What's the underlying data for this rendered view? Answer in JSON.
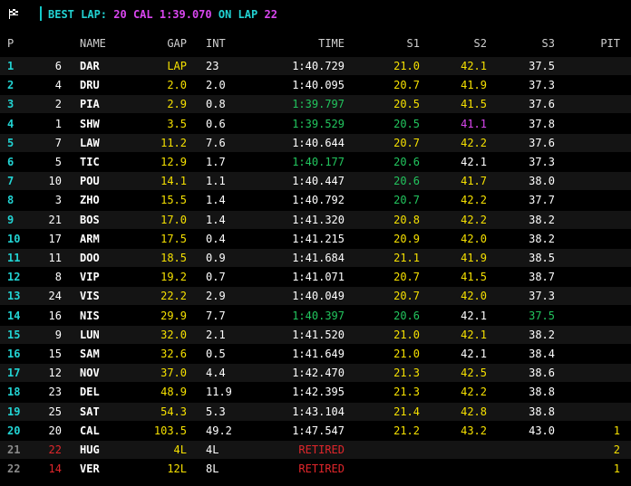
{
  "header": {
    "best_lap_label": "BEST LAP:",
    "best_lap_info": "20 CAL 1:39.070",
    "on_lap_label": "ON LAP",
    "on_lap_value": "22"
  },
  "columns": [
    "P",
    "NAME",
    "GAP",
    "INT",
    "TIME",
    "S1",
    "S2",
    "S3",
    "PIT"
  ],
  "colors": {
    "position": "#22d3d3",
    "gap": "#f5e000",
    "personal_best": "#22c55e",
    "fastest": "#d946ef",
    "retired": "#e0262b",
    "normal": "#ffffff"
  },
  "rows": [
    {
      "p": "1",
      "num": "6",
      "name": "DAR",
      "gap": "LAP",
      "int": "23",
      "time": "1:40.729",
      "s1": "21.0",
      "s2": "42.1",
      "s3": "37.5",
      "pit": ""
    },
    {
      "p": "2",
      "num": "4",
      "name": "DRU",
      "gap": "2.0",
      "int": "2.0",
      "time": "1:40.095",
      "s1": "20.7",
      "s2": "41.9",
      "s3": "37.3",
      "pit": ""
    },
    {
      "p": "3",
      "num": "2",
      "name": "PIA",
      "gap": "2.9",
      "int": "0.8",
      "time": "1:39.797",
      "s1": "20.5",
      "s2": "41.5",
      "s3": "37.6",
      "pit": ""
    },
    {
      "p": "4",
      "num": "1",
      "name": "SHW",
      "gap": "3.5",
      "int": "0.6",
      "time": "1:39.529",
      "s1": "20.5",
      "s2": "41.1",
      "s3": "37.8",
      "pit": ""
    },
    {
      "p": "5",
      "num": "7",
      "name": "LAW",
      "gap": "11.2",
      "int": "7.6",
      "time": "1:40.644",
      "s1": "20.7",
      "s2": "42.2",
      "s3": "37.6",
      "pit": ""
    },
    {
      "p": "6",
      "num": "5",
      "name": "TIC",
      "gap": "12.9",
      "int": "1.7",
      "time": "1:40.177",
      "s1": "20.6",
      "s2": "42.1",
      "s3": "37.3",
      "pit": ""
    },
    {
      "p": "7",
      "num": "10",
      "name": "POU",
      "gap": "14.1",
      "int": "1.1",
      "time": "1:40.447",
      "s1": "20.6",
      "s2": "41.7",
      "s3": "38.0",
      "pit": ""
    },
    {
      "p": "8",
      "num": "3",
      "name": "ZHO",
      "gap": "15.5",
      "int": "1.4",
      "time": "1:40.792",
      "s1": "20.7",
      "s2": "42.2",
      "s3": "37.7",
      "pit": ""
    },
    {
      "p": "9",
      "num": "21",
      "name": "BOS",
      "gap": "17.0",
      "int": "1.4",
      "time": "1:41.320",
      "s1": "20.8",
      "s2": "42.2",
      "s3": "38.2",
      "pit": ""
    },
    {
      "p": "10",
      "num": "17",
      "name": "ARM",
      "gap": "17.5",
      "int": "0.4",
      "time": "1:41.215",
      "s1": "20.9",
      "s2": "42.0",
      "s3": "38.2",
      "pit": ""
    },
    {
      "p": "11",
      "num": "11",
      "name": "DOO",
      "gap": "18.5",
      "int": "0.9",
      "time": "1:41.684",
      "s1": "21.1",
      "s2": "41.9",
      "s3": "38.5",
      "pit": ""
    },
    {
      "p": "12",
      "num": "8",
      "name": "VIP",
      "gap": "19.2",
      "int": "0.7",
      "time": "1:41.071",
      "s1": "20.7",
      "s2": "41.5",
      "s3": "38.7",
      "pit": ""
    },
    {
      "p": "13",
      "num": "24",
      "name": "VIS",
      "gap": "22.2",
      "int": "2.9",
      "time": "1:40.049",
      "s1": "20.7",
      "s2": "42.0",
      "s3": "37.3",
      "pit": ""
    },
    {
      "p": "14",
      "num": "16",
      "name": "NIS",
      "gap": "29.9",
      "int": "7.7",
      "time": "1:40.397",
      "s1": "20.6",
      "s2": "42.1",
      "s3": "37.5",
      "pit": ""
    },
    {
      "p": "15",
      "num": "9",
      "name": "LUN",
      "gap": "32.0",
      "int": "2.1",
      "time": "1:41.520",
      "s1": "21.0",
      "s2": "42.1",
      "s3": "38.2",
      "pit": ""
    },
    {
      "p": "16",
      "num": "15",
      "name": "SAM",
      "gap": "32.6",
      "int": "0.5",
      "time": "1:41.649",
      "s1": "21.0",
      "s2": "42.1",
      "s3": "38.4",
      "pit": ""
    },
    {
      "p": "17",
      "num": "12",
      "name": "NOV",
      "gap": "37.0",
      "int": "4.4",
      "time": "1:42.470",
      "s1": "21.3",
      "s2": "42.5",
      "s3": "38.6",
      "pit": ""
    },
    {
      "p": "18",
      "num": "23",
      "name": "DEL",
      "gap": "48.9",
      "int": "11.9",
      "time": "1:42.395",
      "s1": "21.3",
      "s2": "42.2",
      "s3": "38.8",
      "pit": ""
    },
    {
      "p": "19",
      "num": "25",
      "name": "SAT",
      "gap": "54.3",
      "int": "5.3",
      "time": "1:43.104",
      "s1": "21.4",
      "s2": "42.8",
      "s3": "38.8",
      "pit": ""
    },
    {
      "p": "20",
      "num": "20",
      "name": "CAL",
      "gap": "103.5",
      "int": "49.2",
      "time": "1:47.547",
      "s1": "21.2",
      "s2": "43.2",
      "s3": "43.0",
      "pit": "1"
    },
    {
      "p": "21",
      "num": "22",
      "name": "HUG",
      "gap": "4L",
      "int": "4L",
      "time": "RETIRED",
      "s1": "",
      "s2": "",
      "s3": "",
      "pit": "2"
    },
    {
      "p": "22",
      "num": "14",
      "name": "VER",
      "gap": "12L",
      "int": "8L",
      "time": "RETIRED",
      "s1": "",
      "s2": "",
      "s3": "",
      "pit": "1"
    }
  ]
}
